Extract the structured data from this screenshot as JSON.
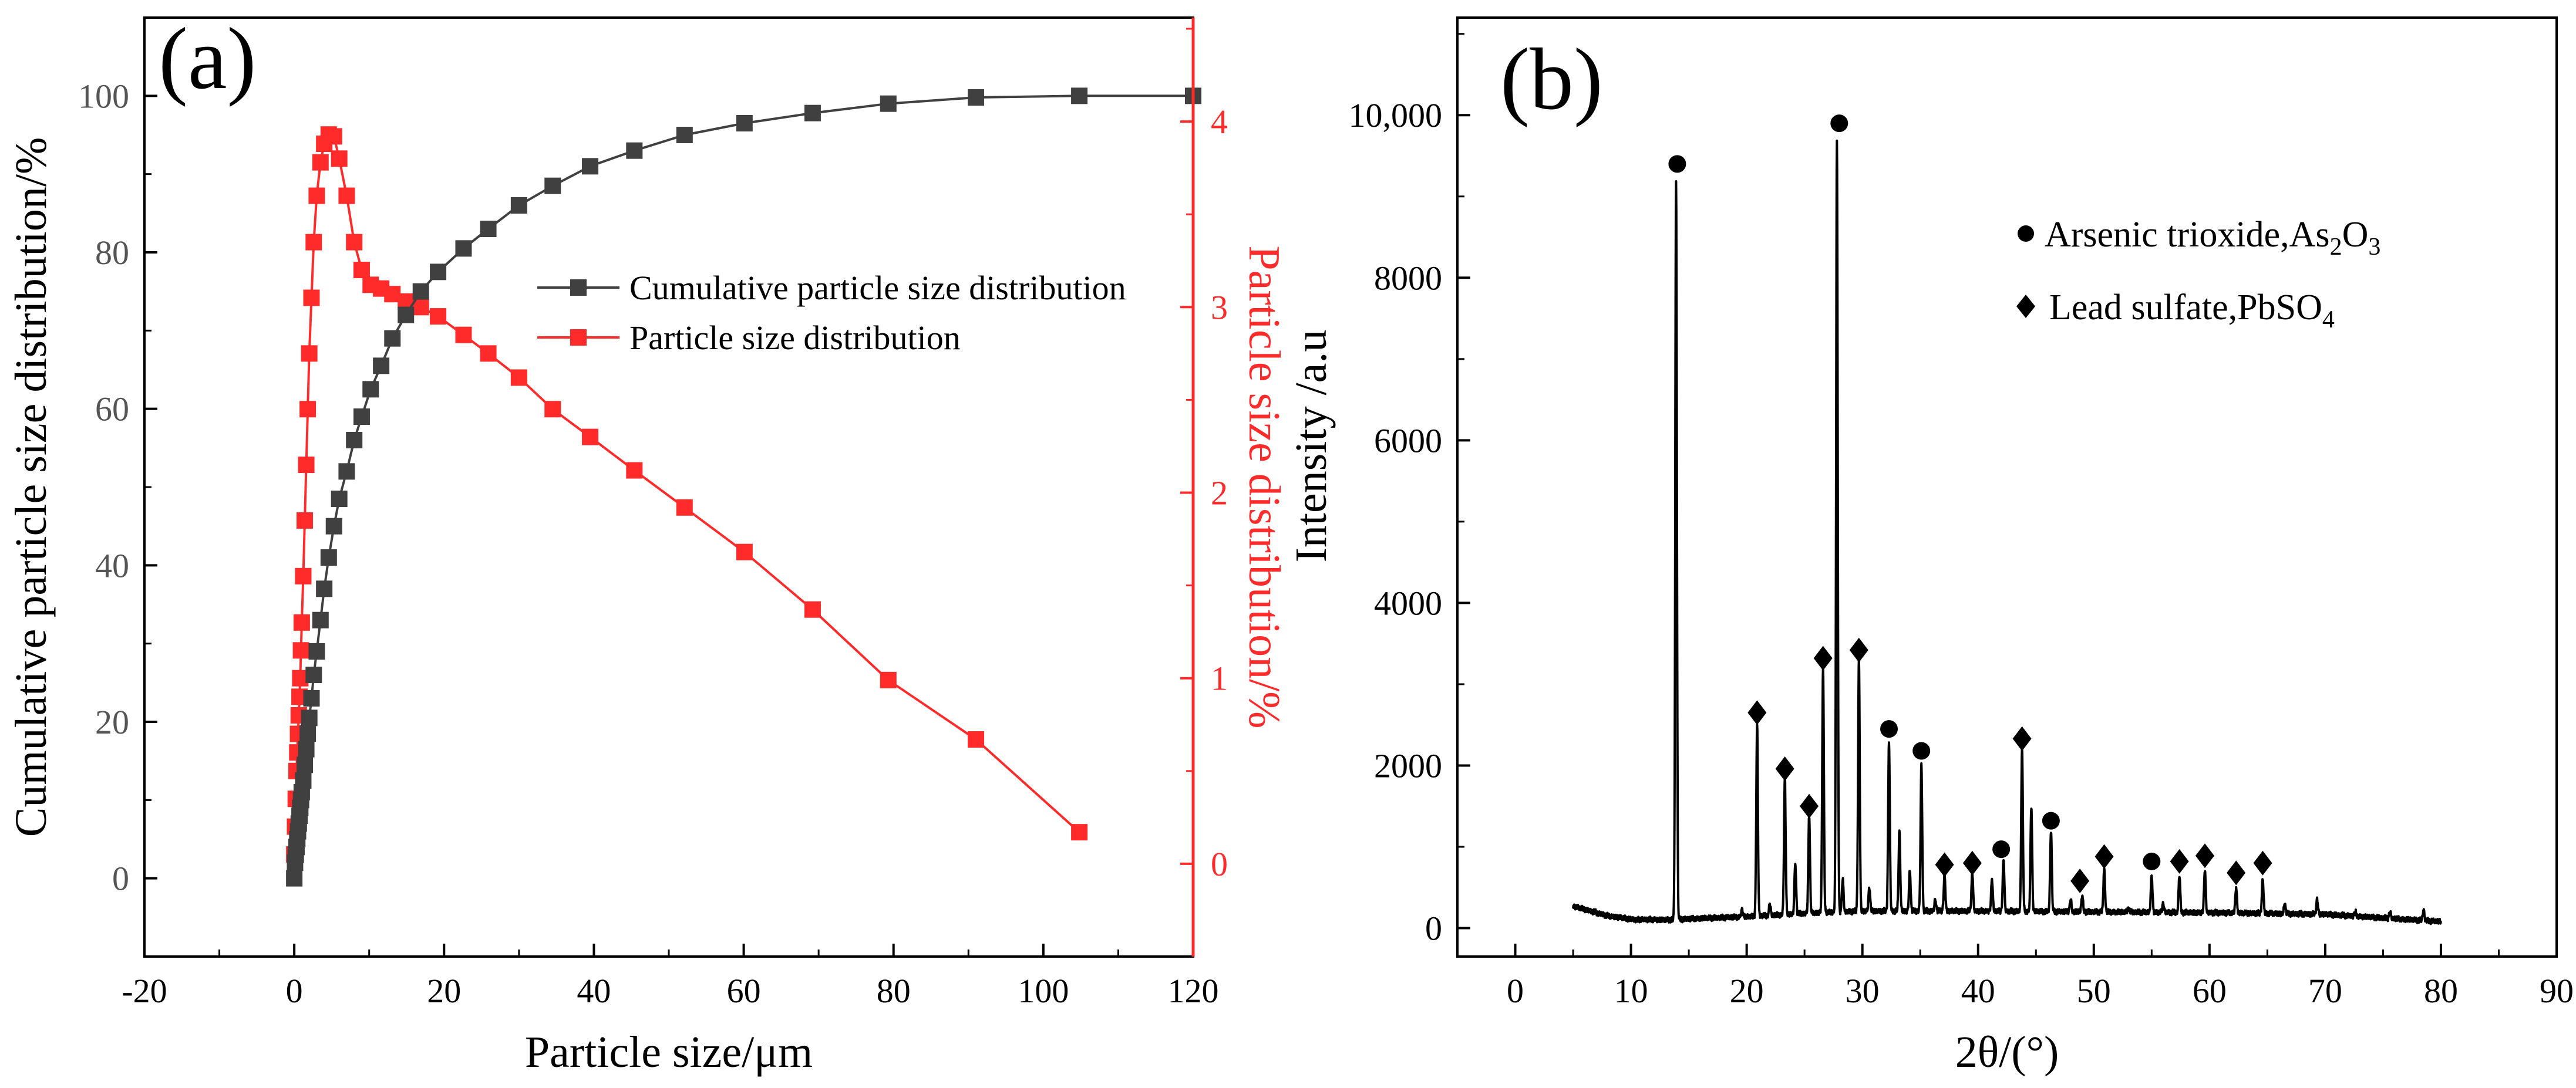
{
  "chart_data": [
    {
      "panel_label": "(a)",
      "type": "line",
      "xlabel": "Particle size/μm",
      "ylabel_left": "Cumulative particle size distribution/%",
      "ylabel_right": "Particle size distribution/%",
      "xlim": [
        -20,
        120
      ],
      "ylim_left": [
        -10,
        110
      ],
      "ylim_right": [
        -0.5,
        4.56
      ],
      "x_ticks": [
        "-20",
        "0",
        "20",
        "40",
        "60",
        "80",
        "100",
        "120"
      ],
      "y_left_ticks": [
        "0",
        "20",
        "40",
        "60",
        "80",
        "100"
      ],
      "y_right_ticks": [
        "0",
        "1",
        "2",
        "3",
        "4"
      ],
      "legend_position": "upper-right",
      "colors": {
        "cumulative": "#404040",
        "distribution": "#ff2a2a",
        "axis_right": "#ff2a2a"
      },
      "series": [
        {
          "name": "Cumulative particle size distribution",
          "axis": "left",
          "marker": "square",
          "x": [
            0,
            0.1,
            0.2,
            0.3,
            0.4,
            0.5,
            0.6,
            0.7,
            0.8,
            0.9,
            1.0,
            1.2,
            1.4,
            1.6,
            1.8,
            2.0,
            2.3,
            2.6,
            3.0,
            3.5,
            4.0,
            4.6,
            5.3,
            6.0,
            7.0,
            8.0,
            9.0,
            10.2,
            11.6,
            13.1,
            14.9,
            16.9,
            19.2,
            22.6,
            25.9,
            30.0,
            34.5,
            39.5,
            45.4,
            52.1,
            60.1,
            69.2,
            79.3,
            91.0,
            104.8,
            120.0
          ],
          "y": [
            0,
            2,
            3,
            4,
            5,
            6,
            7,
            8,
            9,
            10,
            11,
            12.5,
            14.5,
            16.5,
            18.5,
            20.5,
            23,
            26,
            29,
            33,
            37,
            41,
            45,
            48.5,
            52,
            56,
            59,
            62.5,
            65.5,
            69,
            72,
            75,
            77.5,
            80.5,
            83,
            86,
            88.5,
            91,
            93,
            95,
            96.5,
            97.8,
            99,
            99.8,
            100,
            100
          ]
        },
        {
          "name": "Particle size distribution",
          "axis": "right",
          "marker": "square",
          "x": [
            0,
            0.1,
            0.2,
            0.3,
            0.4,
            0.5,
            0.6,
            0.7,
            0.8,
            0.9,
            1.0,
            1.2,
            1.4,
            1.6,
            1.8,
            2.0,
            2.3,
            2.6,
            3.0,
            3.5,
            4.0,
            4.6,
            5.3,
            6.0,
            7.0,
            8.0,
            9.0,
            10.2,
            11.6,
            13.1,
            14.9,
            16.9,
            19.2,
            22.6,
            25.9,
            30.0,
            34.5,
            39.5,
            45.4,
            52.1,
            60.1,
            69.2,
            79.3,
            91.0,
            104.8
          ],
          "y": [
            0.05,
            0.2,
            0.35,
            0.5,
            0.6,
            0.7,
            0.8,
            0.9,
            1.0,
            1.15,
            1.3,
            1.55,
            1.85,
            2.15,
            2.45,
            2.75,
            3.05,
            3.35,
            3.6,
            3.78,
            3.88,
            3.93,
            3.92,
            3.8,
            3.6,
            3.35,
            3.2,
            3.12,
            3.1,
            3.07,
            3.03,
            3.0,
            2.95,
            2.85,
            2.75,
            2.62,
            2.45,
            2.3,
            2.12,
            1.92,
            1.68,
            1.37,
            0.99,
            0.67,
            0.17
          ]
        }
      ]
    },
    {
      "panel_label": "(b)",
      "type": "line",
      "xlabel": "2θ/(°)",
      "ylabel": "Intensity /a.u",
      "xlim": [
        -5,
        90
      ],
      "ylim": [
        -350,
        11200
      ],
      "x_ticks": [
        "0",
        "10",
        "20",
        "30",
        "40",
        "50",
        "60",
        "70",
        "80",
        "90"
      ],
      "y_ticks": [
        "0",
        "2000",
        "4000",
        "6000",
        "8000",
        "10,000"
      ],
      "legend_position": "upper-right",
      "colors": {
        "line": "#000000",
        "markers": "#000000"
      },
      "legend": [
        {
          "marker": "circle",
          "text": "Arsenic trioxide,As",
          "sub": "2",
          "text2": "O",
          "sub2": "3"
        },
        {
          "marker": "diamond",
          "text": "Lead sulfate,PbSO",
          "sub": "4",
          "text2": "",
          "sub2": ""
        }
      ],
      "series": [
        {
          "name": "",
          "baseline": [
            [
              5,
              270
            ],
            [
              8,
              150
            ],
            [
              10,
              110
            ],
            [
              13,
              100
            ],
            [
              16,
              120
            ],
            [
              20,
              140
            ],
            [
              25,
              180
            ],
            [
              30,
              210
            ],
            [
              40,
              210
            ],
            [
              50,
              200
            ],
            [
              60,
              190
            ],
            [
              70,
              170
            ],
            [
              80,
              80
            ]
          ],
          "peaks": [
            [
              10.5,
              90
            ],
            [
              12.1,
              110
            ],
            [
              13.9,
              9200
            ],
            [
              19.6,
              230
            ],
            [
              20.9,
              2500
            ],
            [
              22.0,
              300
            ],
            [
              23.3,
              1850
            ],
            [
              24.2,
              800
            ],
            [
              25.4,
              1400
            ],
            [
              26.6,
              3200
            ],
            [
              27.8,
              9700
            ],
            [
              28.3,
              600
            ],
            [
              29.7,
              3300
            ],
            [
              30.6,
              500
            ],
            [
              32.3,
              2300
            ],
            [
              33.2,
              1200
            ],
            [
              34.1,
              700
            ],
            [
              35.1,
              2000
            ],
            [
              36.3,
              350
            ],
            [
              37.1,
              650
            ],
            [
              39.5,
              680
            ],
            [
              41.2,
              600
            ],
            [
              42.2,
              850
            ],
            [
              43.8,
              2200
            ],
            [
              44.6,
              1500
            ],
            [
              46.3,
              1200
            ],
            [
              48.0,
              350
            ],
            [
              49.0,
              400
            ],
            [
              50.9,
              720
            ],
            [
              53.0,
              250
            ],
            [
              55.0,
              650
            ],
            [
              56.0,
              300
            ],
            [
              57.4,
              650
            ],
            [
              59.6,
              720
            ],
            [
              62.3,
              500
            ],
            [
              64.6,
              600
            ],
            [
              66.5,
              300
            ],
            [
              69.3,
              350
            ],
            [
              72.6,
              200
            ],
            [
              75.6,
              200
            ],
            [
              78.5,
              220
            ]
          ]
        }
      ],
      "markers": [
        {
          "type": "circle",
          "x": 14.0,
          "y": 9400
        },
        {
          "type": "circle",
          "x": 28.0,
          "y": 9900
        },
        {
          "type": "circle",
          "x": 32.3,
          "y": 2450
        },
        {
          "type": "circle",
          "x": 35.1,
          "y": 2180
        },
        {
          "type": "circle",
          "x": 42.0,
          "y": 970
        },
        {
          "type": "circle",
          "x": 46.3,
          "y": 1320
        },
        {
          "type": "circle",
          "x": 55.0,
          "y": 820
        },
        {
          "type": "diamond",
          "x": 20.9,
          "y": 2650
        },
        {
          "type": "diamond",
          "x": 23.3,
          "y": 1960
        },
        {
          "type": "diamond",
          "x": 25.4,
          "y": 1500
        },
        {
          "type": "diamond",
          "x": 26.6,
          "y": 3320
        },
        {
          "type": "diamond",
          "x": 29.7,
          "y": 3420
        },
        {
          "type": "diamond",
          "x": 37.1,
          "y": 780
        },
        {
          "type": "diamond",
          "x": 39.5,
          "y": 800
        },
        {
          "type": "diamond",
          "x": 43.8,
          "y": 2330
        },
        {
          "type": "diamond",
          "x": 48.8,
          "y": 580
        },
        {
          "type": "diamond",
          "x": 50.9,
          "y": 880
        },
        {
          "type": "diamond",
          "x": 57.4,
          "y": 820
        },
        {
          "type": "diamond",
          "x": 59.6,
          "y": 890
        },
        {
          "type": "diamond",
          "x": 62.3,
          "y": 680
        },
        {
          "type": "diamond",
          "x": 64.6,
          "y": 800
        }
      ]
    }
  ]
}
